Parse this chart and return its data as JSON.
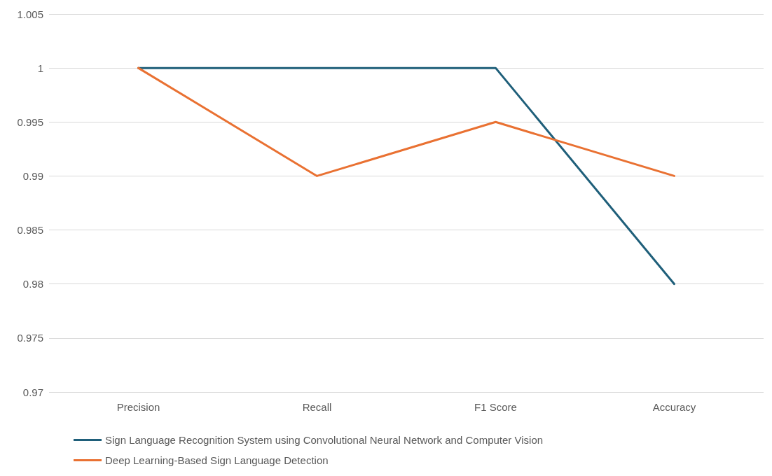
{
  "chart_data": {
    "type": "line",
    "categories": [
      "Precision",
      "Recall",
      "F1 Score",
      "Accuracy"
    ],
    "series": [
      {
        "name": "Sign Language Recognition System using Convolutional Neural Network and Computer Vision",
        "color": "#1f5f7a",
        "values": [
          1,
          1,
          1,
          0.98
        ]
      },
      {
        "name": "Deep Learning-Based Sign Language Detection",
        "color": "#e97132",
        "values": [
          1,
          0.99,
          0.995,
          0.99
        ]
      }
    ],
    "ylim": [
      0.97,
      1.005
    ],
    "yticks": [
      0.97,
      0.975,
      0.98,
      0.985,
      0.99,
      0.995,
      1,
      1.005
    ],
    "grid": "y",
    "legend": "bottom",
    "marker": "none",
    "line_style": "solid"
  }
}
